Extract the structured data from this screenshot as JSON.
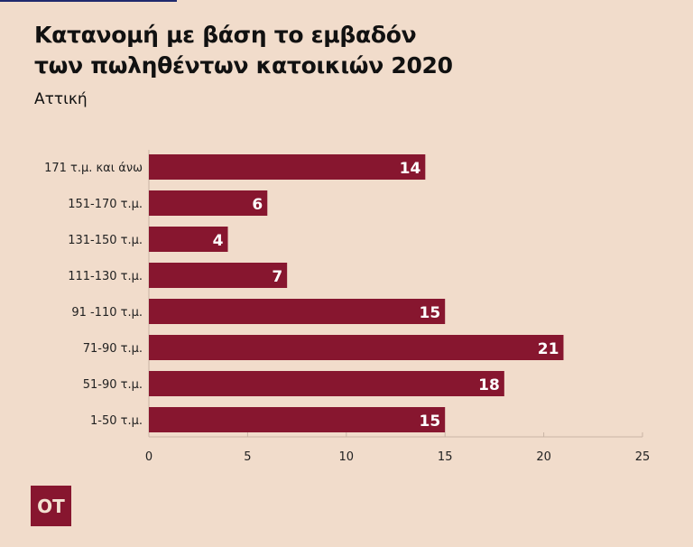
{
  "title_line1": "Κατανομή με βάση το εμβαδόν",
  "title_line2": "των πωληθέντων κατοικιών 2020",
  "subtitle": "Αττική",
  "logo_text": "OT",
  "colors": {
    "bar": "#87162f",
    "background": "#f1dccb",
    "label": "#ffffff"
  },
  "chart_data": {
    "type": "bar",
    "orientation": "horizontal",
    "categories": [
      "171 τ.μ. και άνω",
      "151-170 τ.μ.",
      "131-150 τ.μ.",
      "111-130 τ.μ.",
      "91 -110 τ.μ.",
      "71-90 τ.μ.",
      "51-90 τ.μ.",
      "1-50 τ.μ."
    ],
    "values": [
      14,
      6,
      4,
      7,
      15,
      21,
      18,
      15
    ],
    "xlim": [
      0,
      25
    ],
    "xticks": [
      0,
      5,
      10,
      15,
      20,
      25
    ],
    "grid": false
  }
}
